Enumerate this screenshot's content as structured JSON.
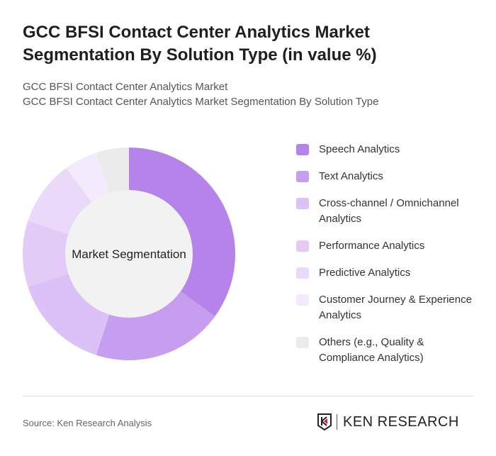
{
  "title": "GCC BFSI Contact Center Analytics Market Segmentation By Solution Type (in value %)",
  "subtitle_lines": [
    "GCC BFSI Contact Center Analytics Market",
    "GCC BFSI Contact Center Analytics Market Segmentation By Solution Type"
  ],
  "source": "Source: Ken Research Analysis",
  "logo_text": "KEN RESEARCH",
  "chart_data": {
    "type": "pie",
    "variant": "donut",
    "center_label": "Market Segmentation",
    "legend_position": "right",
    "categories": [
      "Speech Analytics",
      "Text Analytics",
      "Cross-channel / Omnichannel Analytics",
      "Performance Analytics",
      "Predictive Analytics",
      "Customer Journey & Experience Analytics",
      "Others (e.g., Quality & Compliance Analytics)"
    ],
    "values": [
      35,
      20,
      15,
      10,
      10,
      5,
      5
    ],
    "colors": [
      "#b683ea",
      "#c59ef0",
      "#dbc1f5",
      "#e2cbf7",
      "#ead9f9",
      "#f3ebfc",
      "#ebebeb"
    ]
  }
}
